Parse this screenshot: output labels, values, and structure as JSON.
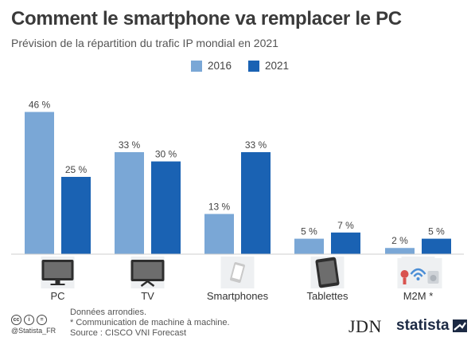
{
  "header": {
    "title": "Comment le smartphone va remplacer le PC",
    "subtitle": "Prévision de la répartition du trafic IP mondial en 2021"
  },
  "chart_data": {
    "type": "bar",
    "categories": [
      "PC",
      "TV",
      "Smartphones",
      "Tablettes",
      "M2M *"
    ],
    "series": [
      {
        "name": "2016",
        "values": [
          46,
          33,
          13,
          5,
          2
        ],
        "labels": [
          "46 %",
          "33 %",
          "13 %",
          "5 %",
          "2 %"
        ],
        "color": "#7aa7d6"
      },
      {
        "name": "2021",
        "values": [
          25,
          30,
          33,
          7,
          5
        ],
        "labels": [
          "25 %",
          "30 %",
          "33 %",
          "7 %",
          "5 %"
        ],
        "color": "#1a62b3"
      }
    ],
    "ylim": [
      0,
      50
    ],
    "grid": false,
    "legend": "top-center",
    "icons": [
      "pc-monitor-icon",
      "tv-icon",
      "smartphone-icon",
      "tablet-icon",
      "m2m-devices-icon"
    ]
  },
  "notes": {
    "line1": "Données arrondies.",
    "line2": "* Communication de machine à machine.",
    "line3": "Source : CISCO VNI Forecast"
  },
  "footer": {
    "handle": "@Statista_FR",
    "brand_jdn": "JDN",
    "brand_statista": "statista"
  }
}
